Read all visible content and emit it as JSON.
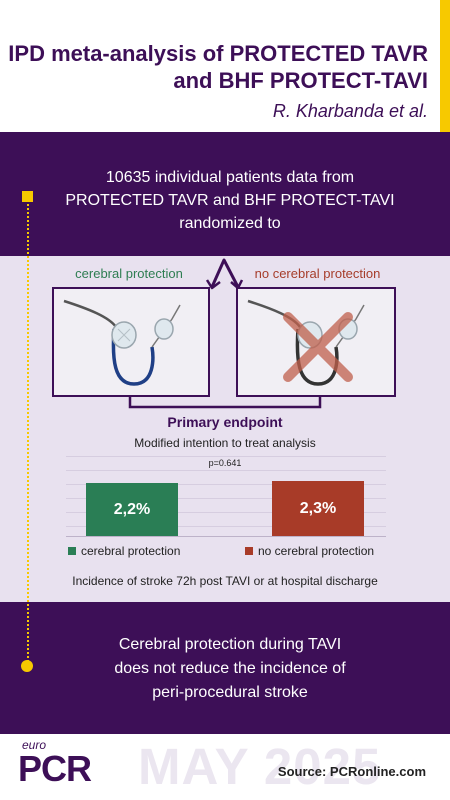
{
  "header": {
    "title_line1": "IPD meta-analysis of PROTECTED TAVR",
    "title_line2": "and BHF PROTECT-TAVI",
    "authors": "R. Kharbanda et al."
  },
  "intro": {
    "line1": "10635 individual patients data from",
    "line2": "PROTECTED TAVR and BHF PROTECT-TAVI",
    "line3": "randomized to"
  },
  "arms": [
    {
      "label": "cerebral protection",
      "color": "#2e7d52"
    },
    {
      "label": "no cerebral protection",
      "color": "#a63d2b"
    }
  ],
  "endpoint": {
    "title": "Primary endpoint",
    "analysis": "Modified intention to treat analysis",
    "p_value": "p=0.641"
  },
  "bars": [
    {
      "value": 2.2,
      "label": "2,2%",
      "legend": "cerebral protection",
      "color": "#2a7e55"
    },
    {
      "value": 2.3,
      "label": "2,3%",
      "legend": "no cerebral protection",
      "color": "#a83b28"
    }
  ],
  "incidence": "Incidence of stroke 72h post TAVI or at hospital discharge",
  "conclusion": {
    "line1": "Cerebral protection during TAVI",
    "line2": "does not reduce the incidence of",
    "line3": "peri-procedural stroke"
  },
  "footer": {
    "logo_small": "euro",
    "logo_big": "PCR",
    "watermark": "MAY 2025",
    "source": "Source: PCRonline.com"
  },
  "colors": {
    "purple": "#3d0f57",
    "yellow": "#f7c900",
    "green": "#2a7e55",
    "red": "#a83b28",
    "lavender": "#e8e1ef"
  },
  "icons": [
    "device-icon",
    "cross-icon",
    "split-arrow-icon"
  ]
}
